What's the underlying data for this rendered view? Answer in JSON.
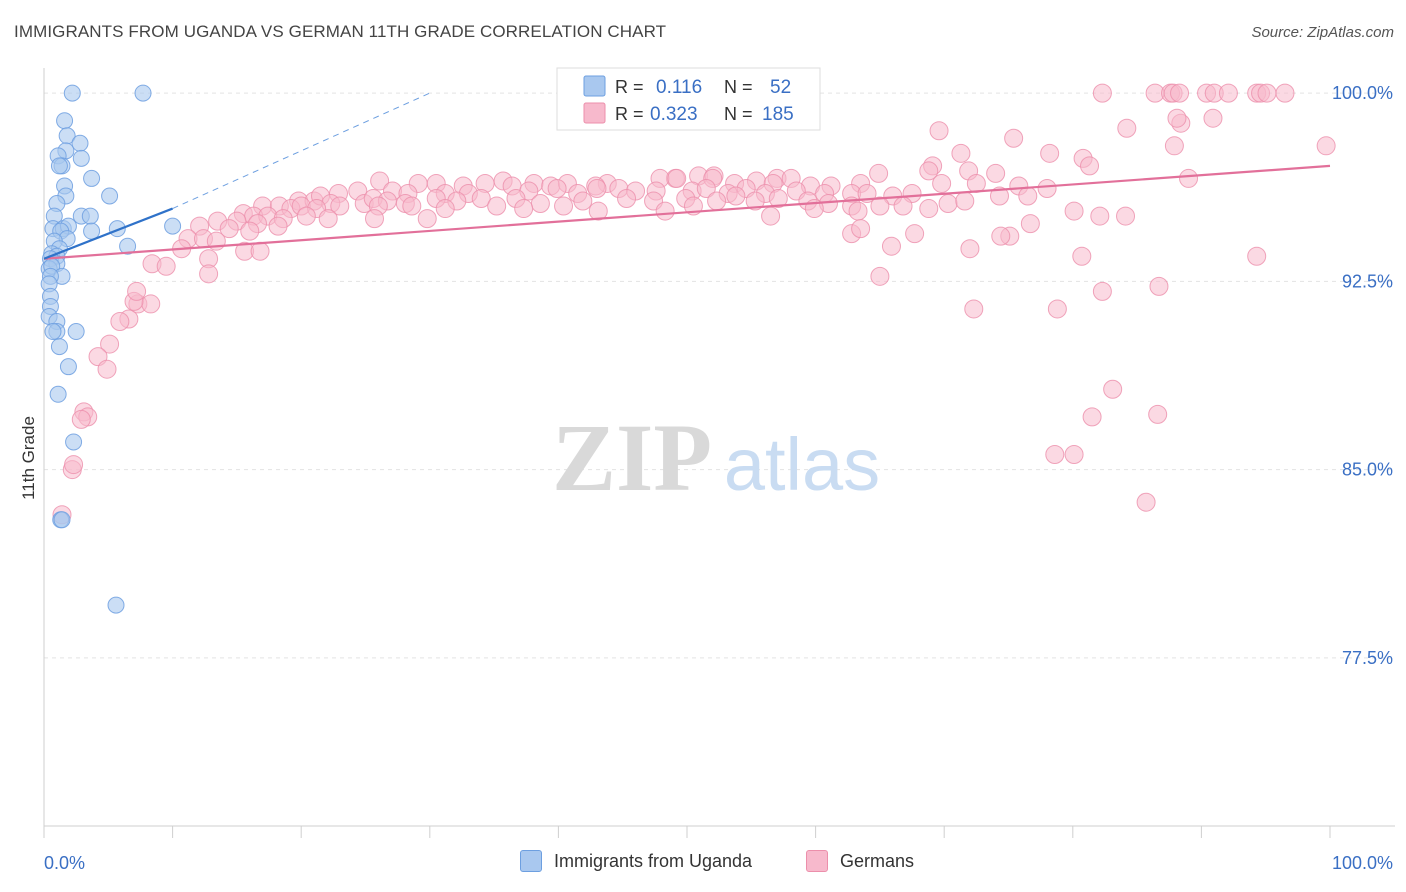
{
  "title": "IMMIGRANTS FROM UGANDA VS GERMAN 11TH GRADE CORRELATION CHART",
  "source": "Source: ZipAtlas.com",
  "watermark": {
    "zip": "ZIP",
    "atlas": "atlas"
  },
  "legend_box": {
    "rows": [
      {
        "r_label": "R =",
        "r_value": "0.116",
        "n_label": "N =",
        "n_value": "52"
      },
      {
        "r_label": "R =",
        "r_value": "0.323",
        "n_label": "N =",
        "n_value": "185"
      }
    ]
  },
  "legend_bottom": [
    "Immigrants from Uganda",
    "Germans"
  ],
  "colors": {
    "blue_fill": "#a9c8ef",
    "blue_stroke": "#6d9fe0",
    "blue_line": "#2f72c9",
    "pink_fill": "#f7b9cc",
    "pink_stroke": "#ec8fab",
    "pink_line": "#e2709a",
    "axis_label": "#3a6fc4",
    "grid": "#e3e3e3"
  },
  "chart_data": {
    "type": "scatter",
    "title": "IMMIGRANTS FROM UGANDA VS GERMAN 11TH GRADE CORRELATION CHART",
    "xlabel": "",
    "ylabel": "11th Grade",
    "x_tick_labels": [
      "0.0%",
      "100.0%"
    ],
    "y_tick_labels": [
      "100.0%",
      "92.5%",
      "85.0%",
      "77.5%"
    ],
    "y_ticks": [
      100.0,
      92.5,
      85.0,
      77.5
    ],
    "xlim": [
      0,
      100
    ],
    "ylim": [
      70.8,
      101.0
    ],
    "grid": true,
    "legend": "top-center",
    "series": [
      {
        "name": "Immigrants from Uganda",
        "r": 0.116,
        "n": 52,
        "trend": {
          "x0": 0,
          "y0": 93.4,
          "x1": 10,
          "y1": 95.4
        },
        "trend_dashed": {
          "x0": 10,
          "y0": 95.4,
          "x1": 30,
          "y1": 100.0
        },
        "points": [
          [
            2.2,
            100.0
          ],
          [
            7.7,
            100.0
          ],
          [
            1.6,
            98.9
          ],
          [
            1.8,
            98.3
          ],
          [
            2.8,
            98.0
          ],
          [
            1.7,
            97.7
          ],
          [
            1.1,
            97.5
          ],
          [
            2.9,
            97.4
          ],
          [
            1.4,
            97.1
          ],
          [
            1.2,
            97.1
          ],
          [
            3.7,
            96.6
          ],
          [
            1.6,
            96.3
          ],
          [
            1.7,
            95.9
          ],
          [
            5.1,
            95.9
          ],
          [
            1.0,
            95.6
          ],
          [
            0.8,
            95.1
          ],
          [
            2.9,
            95.1
          ],
          [
            3.6,
            95.1
          ],
          [
            0.7,
            94.6
          ],
          [
            1.5,
            94.6
          ],
          [
            1.9,
            94.7
          ],
          [
            3.7,
            94.5
          ],
          [
            5.7,
            94.6
          ],
          [
            1.3,
            94.5
          ],
          [
            1.8,
            94.2
          ],
          [
            0.8,
            94.1
          ],
          [
            1.2,
            93.8
          ],
          [
            0.6,
            93.6
          ],
          [
            1.0,
            93.5
          ],
          [
            0.5,
            93.4
          ],
          [
            1.0,
            93.2
          ],
          [
            0.4,
            93.0
          ],
          [
            0.6,
            93.1
          ],
          [
            1.4,
            92.7
          ],
          [
            0.5,
            92.7
          ],
          [
            0.4,
            92.4
          ],
          [
            0.5,
            91.9
          ],
          [
            0.5,
            91.5
          ],
          [
            0.4,
            91.1
          ],
          [
            1.0,
            90.9
          ],
          [
            2.5,
            90.5
          ],
          [
            1.0,
            90.5
          ],
          [
            0.7,
            90.5
          ],
          [
            1.2,
            89.9
          ],
          [
            1.9,
            89.1
          ],
          [
            1.1,
            88.0
          ],
          [
            2.3,
            86.1
          ],
          [
            1.3,
            83.0
          ],
          [
            1.4,
            83.0
          ],
          [
            5.6,
            79.6
          ],
          [
            6.5,
            93.9
          ],
          [
            10.0,
            94.7
          ]
        ]
      },
      {
        "name": "Germans",
        "r": 0.323,
        "n": 185,
        "trend": {
          "x0": 0,
          "y0": 93.4,
          "x1": 100,
          "y1": 97.1
        },
        "points": [
          [
            82.3,
            100.0
          ],
          [
            86.4,
            100.0
          ],
          [
            87.6,
            100.0
          ],
          [
            87.8,
            100.0
          ],
          [
            88.3,
            100.0
          ],
          [
            90.4,
            100.0
          ],
          [
            91.0,
            100.0
          ],
          [
            92.1,
            100.0
          ],
          [
            94.3,
            100.0
          ],
          [
            94.6,
            100.0
          ],
          [
            95.1,
            100.0
          ],
          [
            96.5,
            100.0
          ],
          [
            88.4,
            98.8
          ],
          [
            90.9,
            99.0
          ],
          [
            69.6,
            98.5
          ],
          [
            75.4,
            98.2
          ],
          [
            99.7,
            97.9
          ],
          [
            78.2,
            97.6
          ],
          [
            71.3,
            97.6
          ],
          [
            80.8,
            97.4
          ],
          [
            81.3,
            97.1
          ],
          [
            69.1,
            97.1
          ],
          [
            68.8,
            96.9
          ],
          [
            71.9,
            96.9
          ],
          [
            74.0,
            96.8
          ],
          [
            64.9,
            96.8
          ],
          [
            49.1,
            96.6
          ],
          [
            50.9,
            96.7
          ],
          [
            52.1,
            96.7
          ],
          [
            47.9,
            96.6
          ],
          [
            57.0,
            96.6
          ],
          [
            58.1,
            96.6
          ],
          [
            26.1,
            96.5
          ],
          [
            34.3,
            96.4
          ],
          [
            35.7,
            96.5
          ],
          [
            36.4,
            96.3
          ],
          [
            38.1,
            96.4
          ],
          [
            29.1,
            96.4
          ],
          [
            30.5,
            96.4
          ],
          [
            32.6,
            96.3
          ],
          [
            39.4,
            96.3
          ],
          [
            43.8,
            96.4
          ],
          [
            40.7,
            96.4
          ],
          [
            42.9,
            96.3
          ],
          [
            49.2,
            96.6
          ],
          [
            52.0,
            96.6
          ],
          [
            53.7,
            96.4
          ],
          [
            55.4,
            96.5
          ],
          [
            56.7,
            96.4
          ],
          [
            59.6,
            96.3
          ],
          [
            61.2,
            96.3
          ],
          [
            63.5,
            96.4
          ],
          [
            69.8,
            96.4
          ],
          [
            72.5,
            96.4
          ],
          [
            75.8,
            96.3
          ],
          [
            78.0,
            96.2
          ],
          [
            89.0,
            96.6
          ],
          [
            22.9,
            96.0
          ],
          [
            24.4,
            96.1
          ],
          [
            27.1,
            96.1
          ],
          [
            28.3,
            96.0
          ],
          [
            31.2,
            96.0
          ],
          [
            33.0,
            96.0
          ],
          [
            37.7,
            96.1
          ],
          [
            39.9,
            96.2
          ],
          [
            41.5,
            96.0
          ],
          [
            43.0,
            96.2
          ],
          [
            44.7,
            96.2
          ],
          [
            46.0,
            96.1
          ],
          [
            47.6,
            96.1
          ],
          [
            50.4,
            96.1
          ],
          [
            51.5,
            96.2
          ],
          [
            53.2,
            96.0
          ],
          [
            54.6,
            96.2
          ],
          [
            56.1,
            96.0
          ],
          [
            58.5,
            96.1
          ],
          [
            60.7,
            96.0
          ],
          [
            62.8,
            96.0
          ],
          [
            64.0,
            96.0
          ],
          [
            66.0,
            95.9
          ],
          [
            67.5,
            96.0
          ],
          [
            74.3,
            95.9
          ],
          [
            76.5,
            95.9
          ],
          [
            19.8,
            95.7
          ],
          [
            21.0,
            95.7
          ],
          [
            21.5,
            95.9
          ],
          [
            22.3,
            95.6
          ],
          [
            24.9,
            95.6
          ],
          [
            25.6,
            95.8
          ],
          [
            26.7,
            95.7
          ],
          [
            28.1,
            95.6
          ],
          [
            30.5,
            95.8
          ],
          [
            32.1,
            95.7
          ],
          [
            34.0,
            95.8
          ],
          [
            36.7,
            95.8
          ],
          [
            38.6,
            95.6
          ],
          [
            41.9,
            95.7
          ],
          [
            45.3,
            95.8
          ],
          [
            47.4,
            95.7
          ],
          [
            49.9,
            95.8
          ],
          [
            52.3,
            95.7
          ],
          [
            53.8,
            95.9
          ],
          [
            55.3,
            95.7
          ],
          [
            57.1,
            95.8
          ],
          [
            59.4,
            95.7
          ],
          [
            61.0,
            95.6
          ],
          [
            62.8,
            95.5
          ],
          [
            65.0,
            95.5
          ],
          [
            66.8,
            95.5
          ],
          [
            68.8,
            95.4
          ],
          [
            70.3,
            95.6
          ],
          [
            71.6,
            95.7
          ],
          [
            17.0,
            95.5
          ],
          [
            18.3,
            95.5
          ],
          [
            19.2,
            95.4
          ],
          [
            20.0,
            95.5
          ],
          [
            21.2,
            95.4
          ],
          [
            23.0,
            95.5
          ],
          [
            26.0,
            95.5
          ],
          [
            28.6,
            95.5
          ],
          [
            31.2,
            95.4
          ],
          [
            35.2,
            95.5
          ],
          [
            37.3,
            95.4
          ],
          [
            40.4,
            95.5
          ],
          [
            43.1,
            95.3
          ],
          [
            48.3,
            95.3
          ],
          [
            50.5,
            95.5
          ],
          [
            56.5,
            95.1
          ],
          [
            59.9,
            95.4
          ],
          [
            63.3,
            95.3
          ],
          [
            15.5,
            95.2
          ],
          [
            16.3,
            95.1
          ],
          [
            17.4,
            95.1
          ],
          [
            18.6,
            95.0
          ],
          [
            20.4,
            95.1
          ],
          [
            22.1,
            95.0
          ],
          [
            25.7,
            95.0
          ],
          [
            29.8,
            95.0
          ],
          [
            13.5,
            94.9
          ],
          [
            15.0,
            94.9
          ],
          [
            16.6,
            94.8
          ],
          [
            18.2,
            94.7
          ],
          [
            12.1,
            94.7
          ],
          [
            14.4,
            94.6
          ],
          [
            16.0,
            94.5
          ],
          [
            11.2,
            94.2
          ],
          [
            12.4,
            94.2
          ],
          [
            13.4,
            94.1
          ],
          [
            10.7,
            93.8
          ],
          [
            15.6,
            93.7
          ],
          [
            16.8,
            93.7
          ],
          [
            12.8,
            93.4
          ],
          [
            62.8,
            94.4
          ],
          [
            63.5,
            94.6
          ],
          [
            67.7,
            94.4
          ],
          [
            75.1,
            94.3
          ],
          [
            74.4,
            94.3
          ],
          [
            76.7,
            94.8
          ],
          [
            80.1,
            95.3
          ],
          [
            82.1,
            95.1
          ],
          [
            84.1,
            95.1
          ],
          [
            65.9,
            93.9
          ],
          [
            72.0,
            93.8
          ],
          [
            80.7,
            93.5
          ],
          [
            94.3,
            93.5
          ],
          [
            8.4,
            93.2
          ],
          [
            9.5,
            93.1
          ],
          [
            12.8,
            92.8
          ],
          [
            65.0,
            92.7
          ],
          [
            82.3,
            92.1
          ],
          [
            86.7,
            92.3
          ],
          [
            78.8,
            91.4
          ],
          [
            72.3,
            91.4
          ],
          [
            7.3,
            91.6
          ],
          [
            8.3,
            91.6
          ],
          [
            6.6,
            91.0
          ],
          [
            5.9,
            90.9
          ],
          [
            7.0,
            91.7
          ],
          [
            7.2,
            92.1
          ],
          [
            5.1,
            90.0
          ],
          [
            4.2,
            89.5
          ],
          [
            4.9,
            89.0
          ],
          [
            3.1,
            87.3
          ],
          [
            3.4,
            87.1
          ],
          [
            2.9,
            87.0
          ],
          [
            2.2,
            85.0
          ],
          [
            2.3,
            85.2
          ],
          [
            1.4,
            83.2
          ],
          [
            83.1,
            88.2
          ],
          [
            81.5,
            87.1
          ],
          [
            86.6,
            87.2
          ],
          [
            78.6,
            85.6
          ],
          [
            80.1,
            85.6
          ],
          [
            85.7,
            83.7
          ],
          [
            84.2,
            98.6
          ],
          [
            87.9,
            97.9
          ],
          [
            88.1,
            99.0
          ]
        ]
      }
    ]
  }
}
